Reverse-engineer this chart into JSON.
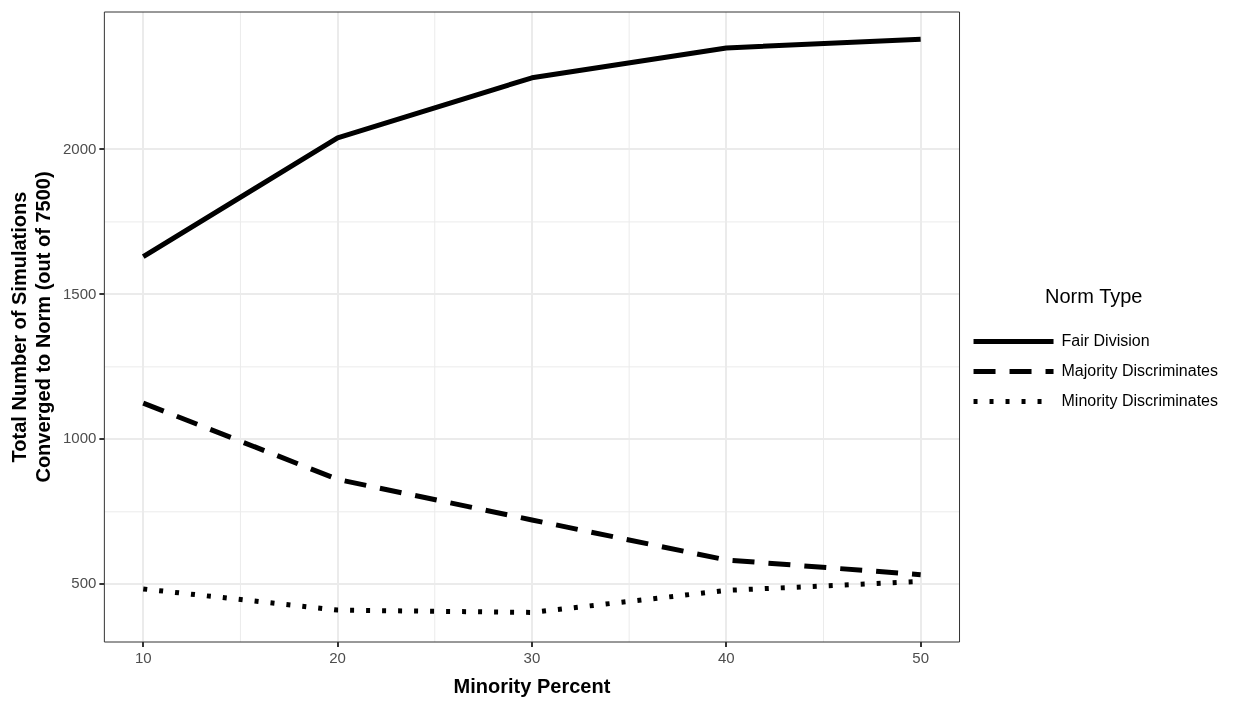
{
  "chart_data": {
    "type": "line",
    "xlabel": "Minority Percent",
    "ylabel": "Total Number of Simulations\nConverged to Norm (out of 7500)",
    "legend_title": "Norm Type",
    "x": [
      10,
      20,
      30,
      40,
      50
    ],
    "series": [
      {
        "name": "Fair Division",
        "color": "#000000",
        "line_style": "solid",
        "values": [
          1630,
          2040,
          2247,
          2350,
          2380
        ]
      },
      {
        "name": "Majority Discriminates",
        "color": "#000000",
        "line_style": "dashed",
        "values": [
          1125,
          862,
          722,
          584,
          533
        ]
      },
      {
        "name": "Minority Discriminates",
        "color": "#000000",
        "line_style": "dotted",
        "values": [
          484,
          411,
          403,
          479,
          510
        ]
      }
    ],
    "xlim": [
      8,
      52
    ],
    "xticks": [
      10,
      20,
      30,
      40,
      50
    ],
    "ylim": [
      301,
      2474
    ],
    "yticks": [
      500,
      1000,
      1500,
      2000
    ],
    "grid": true,
    "legend": "right",
    "marker": "none"
  }
}
